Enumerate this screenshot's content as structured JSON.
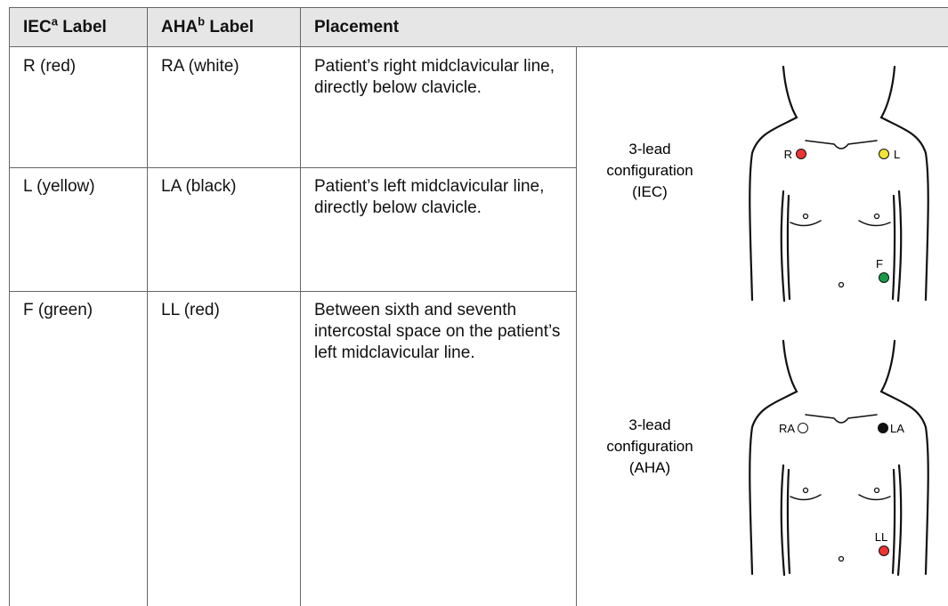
{
  "header": [
    {
      "text": "IEC",
      "sup": "a",
      "suffix": "Label"
    },
    {
      "text": "AHA",
      "sup": "b",
      "suffix": "Label"
    },
    {
      "text": "Placement"
    }
  ],
  "rows": [
    [
      "R (red)",
      "RA (white)",
      "Patient’s right midclavicular line, directly below clavicle."
    ],
    [
      "L (yellow)",
      "LA (black)",
      "Patient’s left midclavicular line, directly below clavicle."
    ],
    [
      "F (green)",
      "LL (red)",
      "Between sixth and seventh intercostal space on the patient’s left midclavicular line."
    ]
  ],
  "figures": [
    {
      "caption": [
        "3-lead",
        "configuration",
        "(IEC)"
      ],
      "electrodes": [
        "R",
        "L",
        "F"
      ]
    },
    {
      "caption": [
        "3-lead",
        "configuration",
        "(AHA)"
      ],
      "electrodes": [
        "RA",
        "LA",
        "LL"
      ]
    }
  ]
}
